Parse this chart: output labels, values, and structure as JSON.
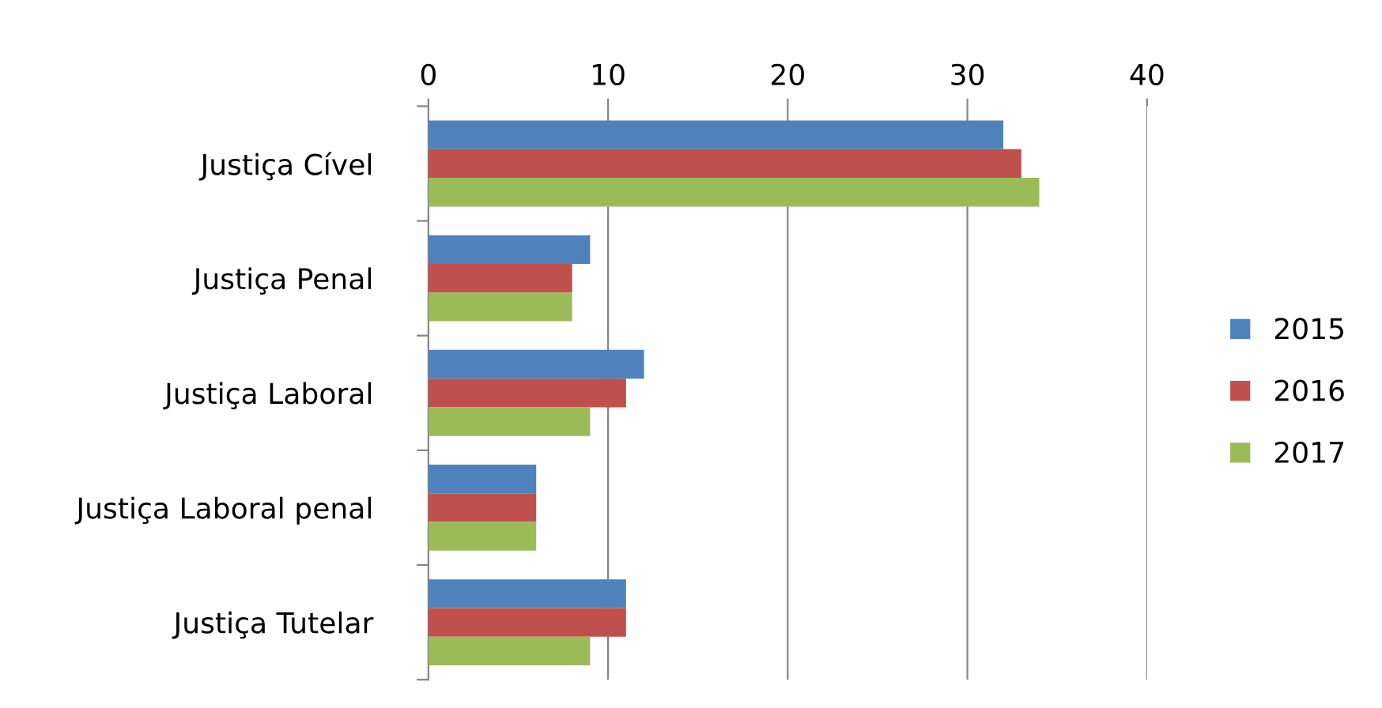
{
  "chart_data": {
    "type": "bar",
    "orientation": "horizontal",
    "categories": [
      "Justiça Cível",
      "Justiça Penal",
      "Justiça Laboral",
      "Justiça Laboral penal",
      "Justiça Tutelar"
    ],
    "series": [
      {
        "name": "2015",
        "color": "#4f81bd",
        "values": [
          32,
          9,
          12,
          6,
          11
        ]
      },
      {
        "name": "2016",
        "color": "#c0504d",
        "values": [
          33,
          8,
          11,
          6,
          11
        ]
      },
      {
        "name": "2017",
        "color": "#9bbb59",
        "values": [
          34,
          8,
          9,
          6,
          9
        ]
      }
    ],
    "xlim": [
      0,
      40
    ],
    "xticks": [
      0,
      10,
      20,
      30,
      40
    ],
    "grid": "x",
    "legend": "right"
  }
}
